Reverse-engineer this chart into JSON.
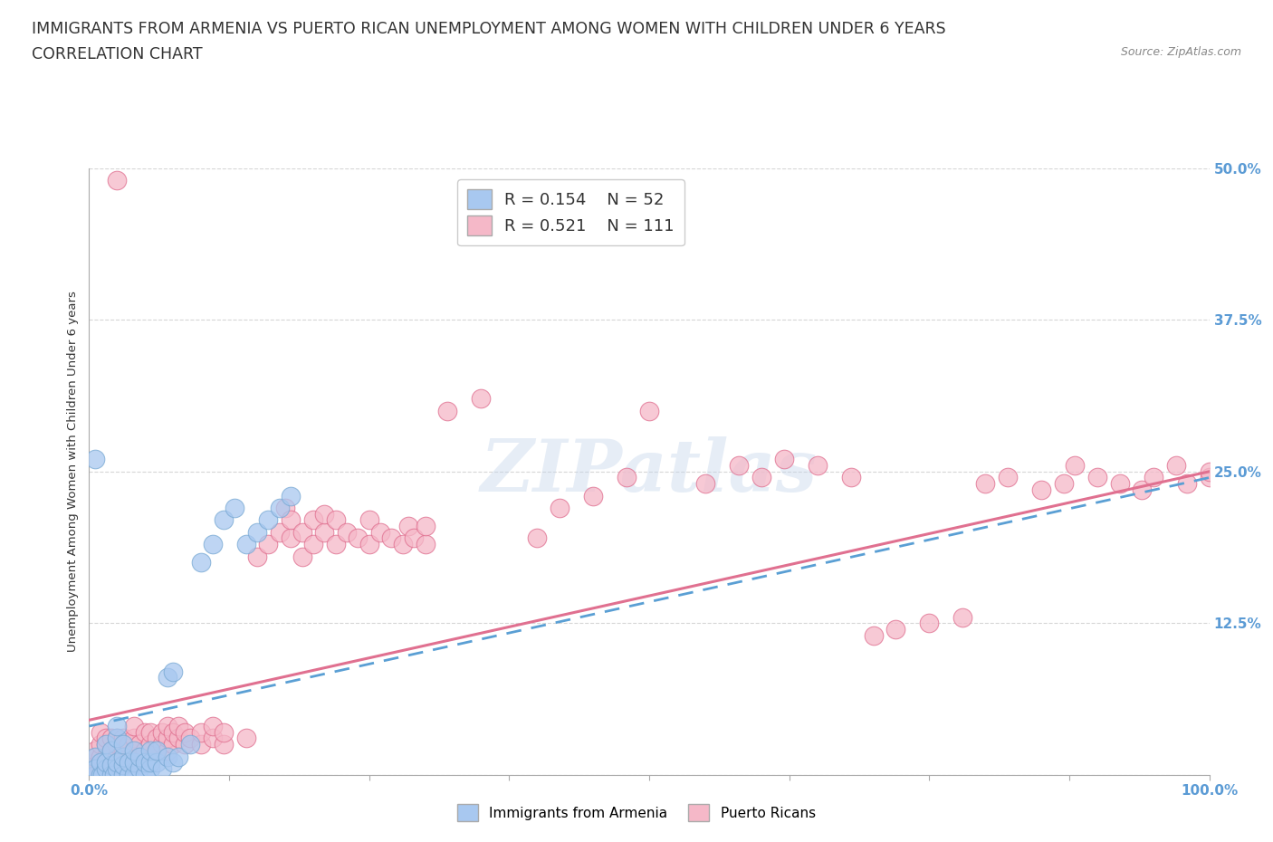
{
  "title_line1": "IMMIGRANTS FROM ARMENIA VS PUERTO RICAN UNEMPLOYMENT AMONG WOMEN WITH CHILDREN UNDER 6 YEARS",
  "title_line2": "CORRELATION CHART",
  "source_text": "Source: ZipAtlas.com",
  "ylabel": "Unemployment Among Women with Children Under 6 years",
  "xlim": [
    0.0,
    1.0
  ],
  "ylim": [
    0.0,
    0.5
  ],
  "yticks": [
    0.0,
    0.125,
    0.25,
    0.375,
    0.5
  ],
  "ytick_labels": [
    "",
    "12.5%",
    "25.0%",
    "37.5%",
    "50.0%"
  ],
  "watermark_text": "ZIPatlas",
  "armenia_color": "#a8c8f0",
  "armenia_edge": "#7aaad4",
  "puertorico_color": "#f5b8c8",
  "puertorico_edge": "#e07090",
  "background_color": "#ffffff",
  "grid_color": "#cccccc",
  "title_fontsize": 12.5,
  "tick_label_color": "#5b9bd5",
  "armenia_points": [
    [
      0.005,
      0.0
    ],
    [
      0.005,
      0.015
    ],
    [
      0.005,
      0.005
    ],
    [
      0.01,
      0.0
    ],
    [
      0.01,
      0.01
    ],
    [
      0.012,
      0.0
    ],
    [
      0.015,
      0.005
    ],
    [
      0.015,
      0.01
    ],
    [
      0.015,
      0.025
    ],
    [
      0.02,
      0.0
    ],
    [
      0.02,
      0.008
    ],
    [
      0.02,
      0.02
    ],
    [
      0.022,
      0.0
    ],
    [
      0.025,
      0.005
    ],
    [
      0.025,
      0.01
    ],
    [
      0.025,
      0.03
    ],
    [
      0.025,
      0.04
    ],
    [
      0.03,
      0.0
    ],
    [
      0.03,
      0.008
    ],
    [
      0.03,
      0.015
    ],
    [
      0.03,
      0.025
    ],
    [
      0.035,
      0.0
    ],
    [
      0.035,
      0.01
    ],
    [
      0.04,
      0.0
    ],
    [
      0.04,
      0.01
    ],
    [
      0.04,
      0.02
    ],
    [
      0.045,
      0.005
    ],
    [
      0.045,
      0.015
    ],
    [
      0.05,
      0.0
    ],
    [
      0.05,
      0.01
    ],
    [
      0.055,
      0.005
    ],
    [
      0.055,
      0.01
    ],
    [
      0.055,
      0.02
    ],
    [
      0.06,
      0.01
    ],
    [
      0.06,
      0.02
    ],
    [
      0.065,
      0.005
    ],
    [
      0.07,
      0.015
    ],
    [
      0.07,
      0.08
    ],
    [
      0.075,
      0.01
    ],
    [
      0.075,
      0.085
    ],
    [
      0.08,
      0.015
    ],
    [
      0.09,
      0.025
    ],
    [
      0.1,
      0.175
    ],
    [
      0.11,
      0.19
    ],
    [
      0.12,
      0.21
    ],
    [
      0.13,
      0.22
    ],
    [
      0.14,
      0.19
    ],
    [
      0.15,
      0.2
    ],
    [
      0.005,
      0.26
    ],
    [
      0.16,
      0.21
    ],
    [
      0.17,
      0.22
    ],
    [
      0.18,
      0.23
    ]
  ],
  "puertorico_points": [
    [
      0.005,
      0.0
    ],
    [
      0.005,
      0.005
    ],
    [
      0.005,
      0.01
    ],
    [
      0.005,
      0.015
    ],
    [
      0.005,
      0.02
    ],
    [
      0.01,
      0.0
    ],
    [
      0.01,
      0.008
    ],
    [
      0.01,
      0.015
    ],
    [
      0.01,
      0.025
    ],
    [
      0.01,
      0.035
    ],
    [
      0.015,
      0.005
    ],
    [
      0.015,
      0.015
    ],
    [
      0.015,
      0.025
    ],
    [
      0.015,
      0.03
    ],
    [
      0.02,
      0.0
    ],
    [
      0.02,
      0.008
    ],
    [
      0.02,
      0.015
    ],
    [
      0.02,
      0.02
    ],
    [
      0.02,
      0.03
    ],
    [
      0.025,
      0.005
    ],
    [
      0.025,
      0.015
    ],
    [
      0.025,
      0.025
    ],
    [
      0.025,
      0.03
    ],
    [
      0.03,
      0.01
    ],
    [
      0.03,
      0.02
    ],
    [
      0.03,
      0.03
    ],
    [
      0.035,
      0.015
    ],
    [
      0.035,
      0.025
    ],
    [
      0.04,
      0.02
    ],
    [
      0.04,
      0.03
    ],
    [
      0.04,
      0.04
    ],
    [
      0.045,
      0.015
    ],
    [
      0.045,
      0.025
    ],
    [
      0.05,
      0.02
    ],
    [
      0.05,
      0.035
    ],
    [
      0.055,
      0.025
    ],
    [
      0.055,
      0.035
    ],
    [
      0.06,
      0.02
    ],
    [
      0.06,
      0.03
    ],
    [
      0.065,
      0.025
    ],
    [
      0.065,
      0.035
    ],
    [
      0.07,
      0.02
    ],
    [
      0.07,
      0.03
    ],
    [
      0.07,
      0.04
    ],
    [
      0.075,
      0.025
    ],
    [
      0.075,
      0.035
    ],
    [
      0.08,
      0.03
    ],
    [
      0.08,
      0.04
    ],
    [
      0.085,
      0.025
    ],
    [
      0.085,
      0.035
    ],
    [
      0.09,
      0.03
    ],
    [
      0.1,
      0.025
    ],
    [
      0.1,
      0.035
    ],
    [
      0.11,
      0.03
    ],
    [
      0.11,
      0.04
    ],
    [
      0.12,
      0.025
    ],
    [
      0.12,
      0.035
    ],
    [
      0.025,
      0.49
    ],
    [
      0.14,
      0.03
    ],
    [
      0.15,
      0.18
    ],
    [
      0.16,
      0.19
    ],
    [
      0.17,
      0.2
    ],
    [
      0.175,
      0.22
    ],
    [
      0.18,
      0.195
    ],
    [
      0.18,
      0.21
    ],
    [
      0.19,
      0.18
    ],
    [
      0.19,
      0.2
    ],
    [
      0.2,
      0.19
    ],
    [
      0.2,
      0.21
    ],
    [
      0.21,
      0.2
    ],
    [
      0.21,
      0.215
    ],
    [
      0.22,
      0.19
    ],
    [
      0.22,
      0.21
    ],
    [
      0.23,
      0.2
    ],
    [
      0.24,
      0.195
    ],
    [
      0.25,
      0.19
    ],
    [
      0.25,
      0.21
    ],
    [
      0.26,
      0.2
    ],
    [
      0.27,
      0.195
    ],
    [
      0.28,
      0.19
    ],
    [
      0.285,
      0.205
    ],
    [
      0.29,
      0.195
    ],
    [
      0.3,
      0.19
    ],
    [
      0.3,
      0.205
    ],
    [
      0.32,
      0.3
    ],
    [
      0.35,
      0.31
    ],
    [
      0.4,
      0.195
    ],
    [
      0.42,
      0.22
    ],
    [
      0.45,
      0.23
    ],
    [
      0.48,
      0.245
    ],
    [
      0.5,
      0.3
    ],
    [
      0.55,
      0.24
    ],
    [
      0.58,
      0.255
    ],
    [
      0.6,
      0.245
    ],
    [
      0.62,
      0.26
    ],
    [
      0.65,
      0.255
    ],
    [
      0.68,
      0.245
    ],
    [
      0.7,
      0.115
    ],
    [
      0.72,
      0.12
    ],
    [
      0.75,
      0.125
    ],
    [
      0.78,
      0.13
    ],
    [
      0.8,
      0.24
    ],
    [
      0.82,
      0.245
    ],
    [
      0.85,
      0.235
    ],
    [
      0.87,
      0.24
    ],
    [
      0.88,
      0.255
    ],
    [
      0.9,
      0.245
    ],
    [
      0.92,
      0.24
    ],
    [
      0.94,
      0.235
    ],
    [
      0.95,
      0.245
    ],
    [
      0.97,
      0.255
    ],
    [
      0.98,
      0.24
    ],
    [
      1.0,
      0.245
    ],
    [
      1.0,
      0.25
    ]
  ]
}
